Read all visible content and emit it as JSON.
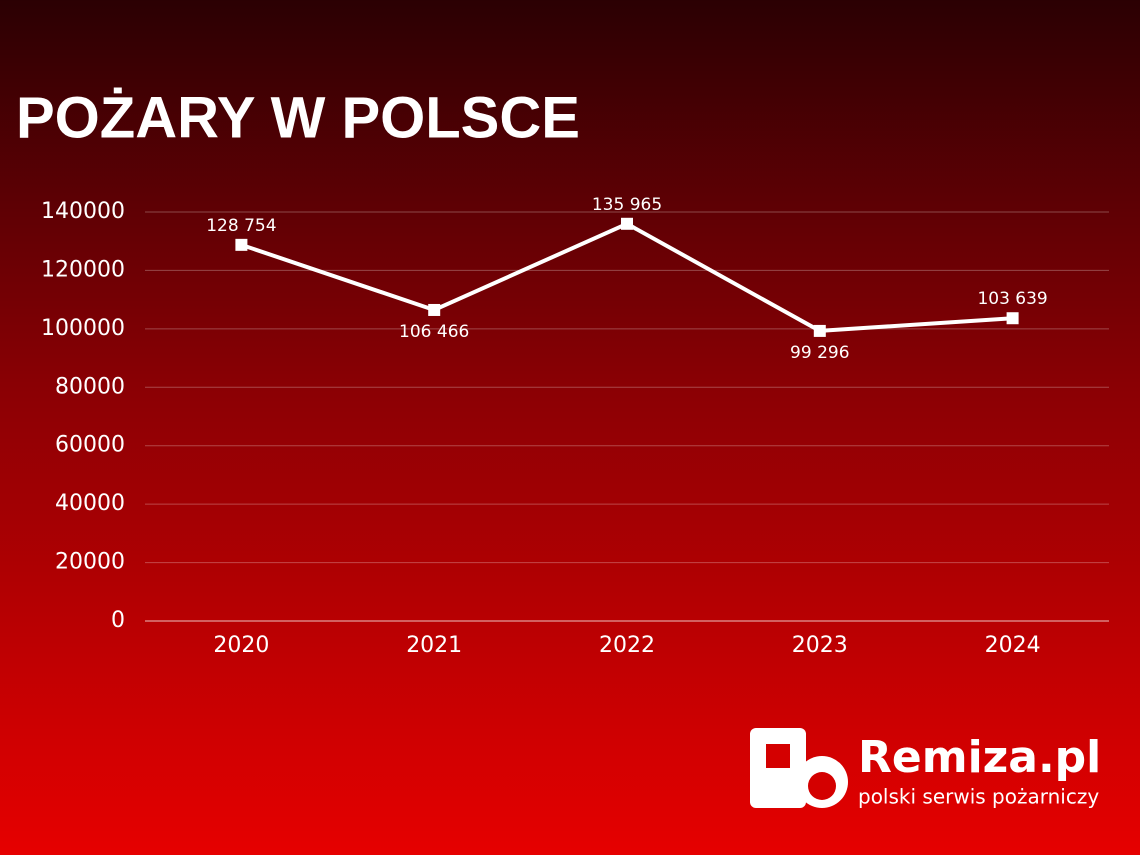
{
  "chart_data": {
    "type": "line",
    "title": "POŻARY W POLSCE",
    "categories": [
      "2020",
      "2021",
      "2022",
      "2023",
      "2024"
    ],
    "values": [
      128754,
      106466,
      135965,
      99296,
      103639
    ],
    "value_labels": [
      "128 754",
      "106 466",
      "135 965",
      "99 296",
      "103 639"
    ],
    "color": "#ffffff",
    "ylim": [
      0,
      140000
    ],
    "yticks": [
      0,
      20000,
      40000,
      60000,
      80000,
      100000,
      120000,
      140000
    ],
    "grid": true
  },
  "logo": {
    "name": "Remiza.pl",
    "tagline": "polski serwis pożarniczy"
  }
}
